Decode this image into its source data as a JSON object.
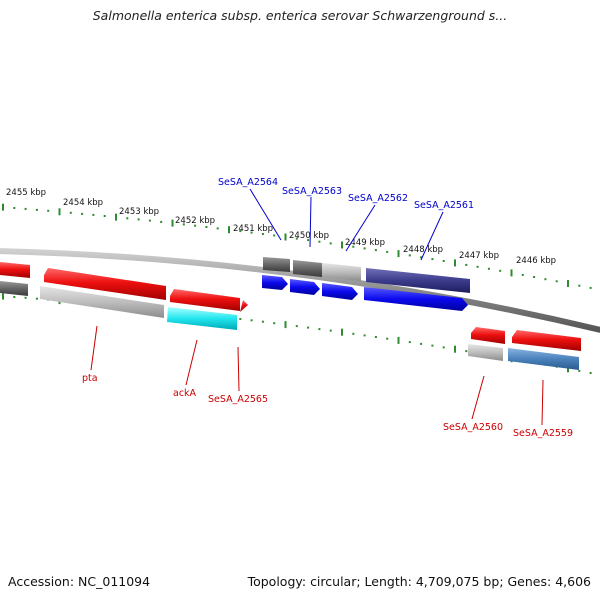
{
  "title": "Salmonella enterica subsp. enterica serovar Schwarzenground s...",
  "footer": {
    "accession_label": "Accession:",
    "accession": "NC_011094",
    "topology_label": "Topology:",
    "topology": "circular",
    "length_label": "Length:",
    "length": "4,709,075 bp",
    "genes_label": "Genes:",
    "genes": "4,606"
  },
  "scale_labels": [
    "2455 kbp",
    "2454 kbp",
    "2453 kbp",
    "2452 kbp",
    "2451 kbp",
    "2450 kbp",
    "2449 kbp",
    "2448 kbp",
    "2447 kbp",
    "2446 kbp"
  ],
  "upper_genes": [
    "SeSA_A2564",
    "SeSA_A2563",
    "SeSA_A2562",
    "SeSA_A2561"
  ],
  "lower_genes": [
    "pta",
    "ackA",
    "SeSA_A2565",
    "SeSA_A2560",
    "SeSA_A2559"
  ],
  "colors": {
    "upper_label": "#0000cc",
    "lower_label": "#cc0000",
    "ticks": "#2e8b2e",
    "backbone": "#888888"
  }
}
